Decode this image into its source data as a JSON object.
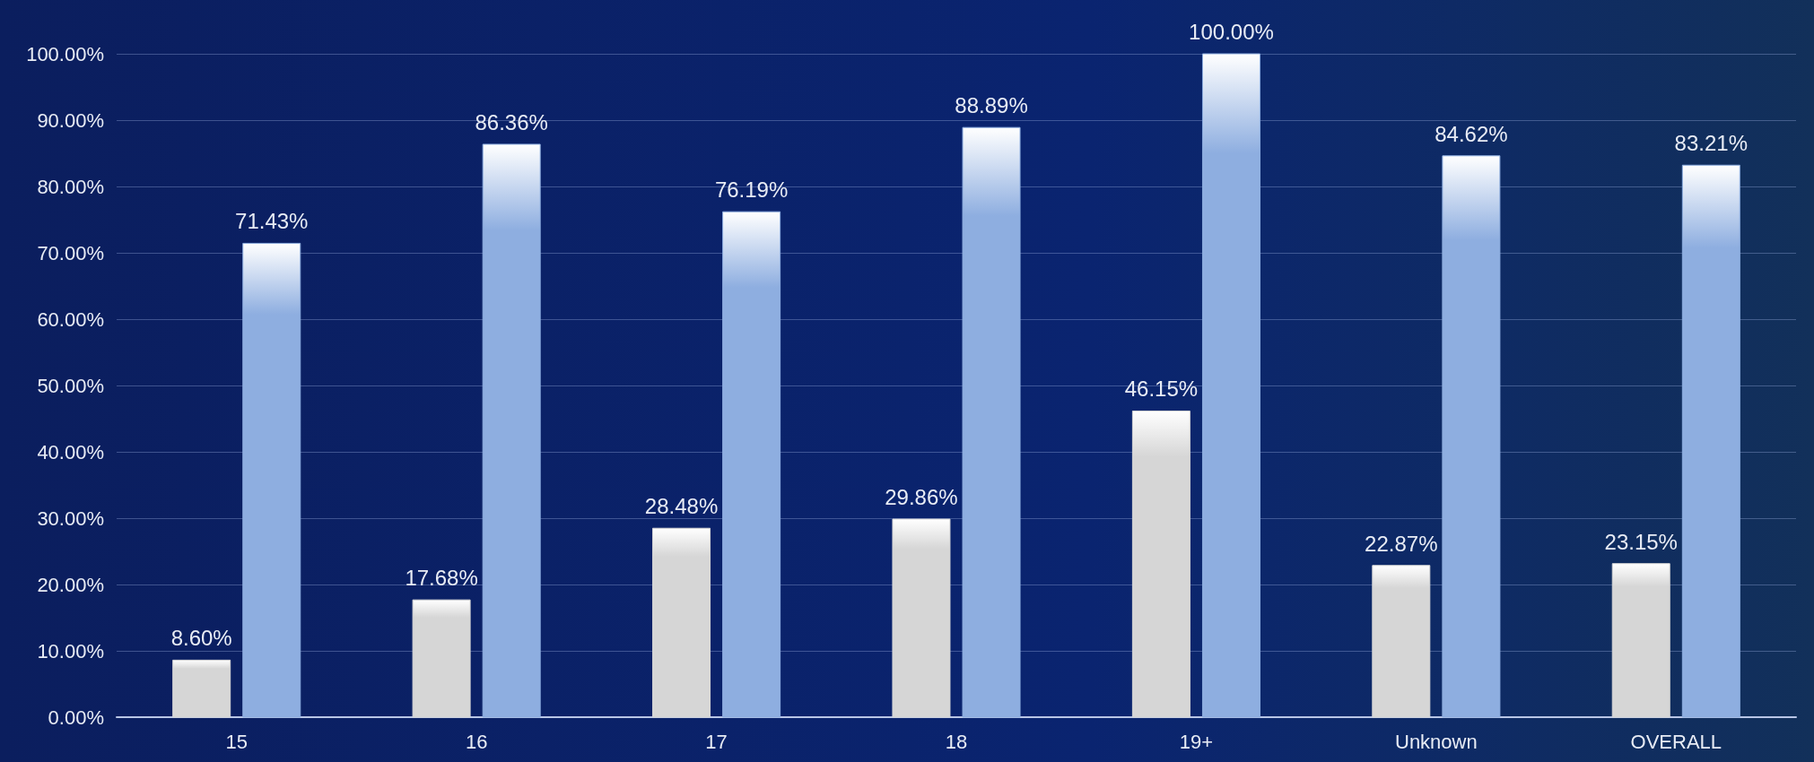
{
  "chart_data": {
    "type": "bar",
    "categories": [
      "15",
      "16",
      "17",
      "18",
      "19+",
      "Unknown",
      "OVERALL"
    ],
    "series": [
      {
        "color": "#d6d6d6",
        "values": [
          8.6,
          17.68,
          28.48,
          29.86,
          46.15,
          22.87,
          23.15
        ],
        "value_labels": [
          "8.60%",
          "17.68%",
          "28.48%",
          "29.86%",
          "46.15%",
          "22.87%",
          "23.15%"
        ]
      },
      {
        "color": "#8eaee0",
        "values": [
          71.43,
          86.36,
          76.19,
          88.89,
          100,
          84.62,
          83.21
        ],
        "value_labels": [
          "71.43%",
          "86.36%",
          "76.19%",
          "88.89%",
          "100.00%",
          "84.62%",
          "83.21%"
        ]
      }
    ],
    "ylim": [
      0,
      100
    ],
    "yticks": [
      {
        "value": 0,
        "label": "0.00%"
      },
      {
        "value": 10,
        "label": "10.00%"
      },
      {
        "value": 20,
        "label": "20.00%"
      },
      {
        "value": 30,
        "label": "30.00%"
      },
      {
        "value": 40,
        "label": "40.00%"
      },
      {
        "value": 50,
        "label": "50.00%"
      },
      {
        "value": 60,
        "label": "60.00%"
      },
      {
        "value": 70,
        "label": "70.00%"
      },
      {
        "value": 80,
        "label": "80.00%"
      },
      {
        "value": 90,
        "label": "90.00%"
      },
      {
        "value": 100,
        "label": "100.00%"
      }
    ],
    "grid": "y"
  }
}
